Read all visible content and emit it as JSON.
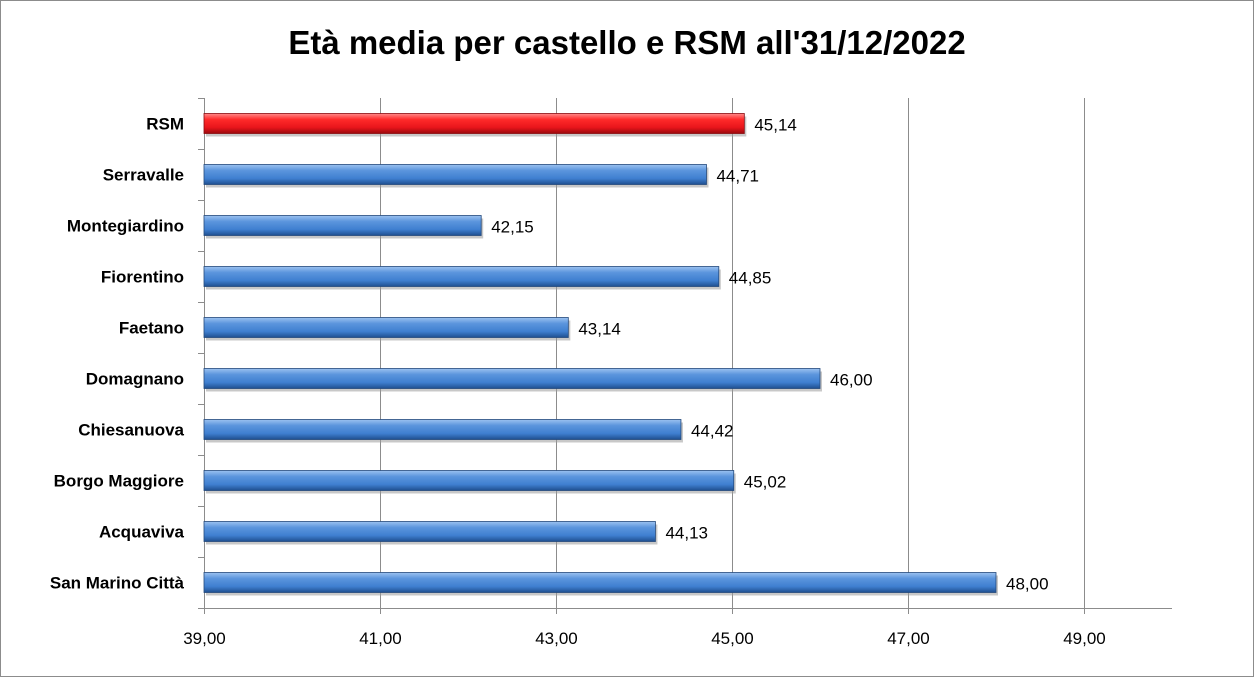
{
  "chart_data": {
    "type": "bar",
    "orientation": "horizontal",
    "title": "Età media per castello e RSM all'31/12/2022",
    "categories": [
      "RSM",
      "Serravalle",
      "Montegiardino",
      "Fiorentino",
      "Faetano",
      "Domagnano",
      "Chiesanuova",
      "Borgo Maggiore",
      "Acquaviva",
      "San Marino Città"
    ],
    "values": [
      45.14,
      44.71,
      42.15,
      44.85,
      43.14,
      46.0,
      44.42,
      45.02,
      44.13,
      48.0
    ],
    "value_labels": [
      "45,14",
      "44,71",
      "42,15",
      "44,85",
      "43,14",
      "46,00",
      "44,42",
      "45,02",
      "44,13",
      "48,00"
    ],
    "xlim": [
      39,
      50
    ],
    "xticks": [
      39,
      41,
      43,
      45,
      47,
      49
    ],
    "xtick_labels": [
      "39,00",
      "41,00",
      "43,00",
      "45,00",
      "47,00",
      "49,00"
    ],
    "xlabel": "",
    "ylabel": "",
    "grid": "vertical",
    "legend": "none",
    "colors": {
      "highlight": "#e8151b",
      "default": "#3f7fd0"
    }
  }
}
